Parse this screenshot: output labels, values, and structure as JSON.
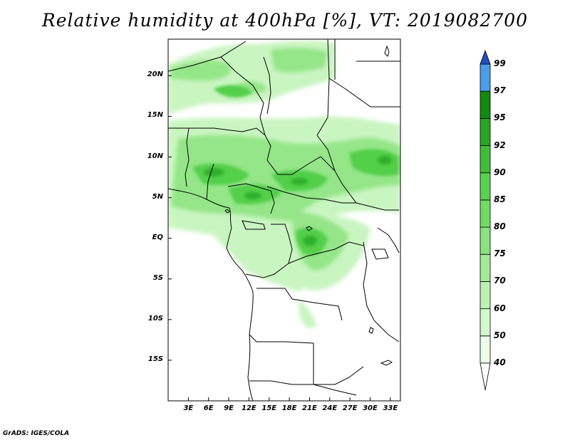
{
  "title": "Relative humidity at 400hPa [%], VT: 2019082700",
  "credit": "GrADS: IGES/COLA",
  "map": {
    "lat_labels": [
      "20N",
      "15N",
      "10N",
      "5N",
      "EQ",
      "5S",
      "10S",
      "15S"
    ],
    "lon_labels": [
      "3E",
      "6E",
      "9E",
      "12E",
      "15E",
      "18E",
      "21E",
      "24E",
      "27E",
      "30E",
      "33E"
    ],
    "lat_values": [
      20,
      15,
      10,
      5,
      0,
      -5,
      -10,
      -15
    ],
    "lon_values": [
      3,
      6,
      9,
      12,
      15,
      18,
      21,
      24,
      27,
      30,
      33
    ],
    "lon_range": [
      0,
      34.5
    ],
    "lat_range": [
      -20,
      24.5
    ]
  },
  "colorbar": {
    "levels": [
      "40",
      "50",
      "60",
      "70",
      "75",
      "80",
      "85",
      "90",
      "92",
      "95",
      "97",
      "99"
    ],
    "colors": [
      "#ebfce8",
      "#d2f8cc",
      "#bbf2b2",
      "#a3eb98",
      "#8ae37e",
      "#70dc64",
      "#58d24e",
      "#3fbf39",
      "#27a523",
      "#108a0f",
      "#4a9bea",
      "#2a6fd8",
      "#1d4fc0"
    ],
    "under_color": "#ffffff"
  }
}
